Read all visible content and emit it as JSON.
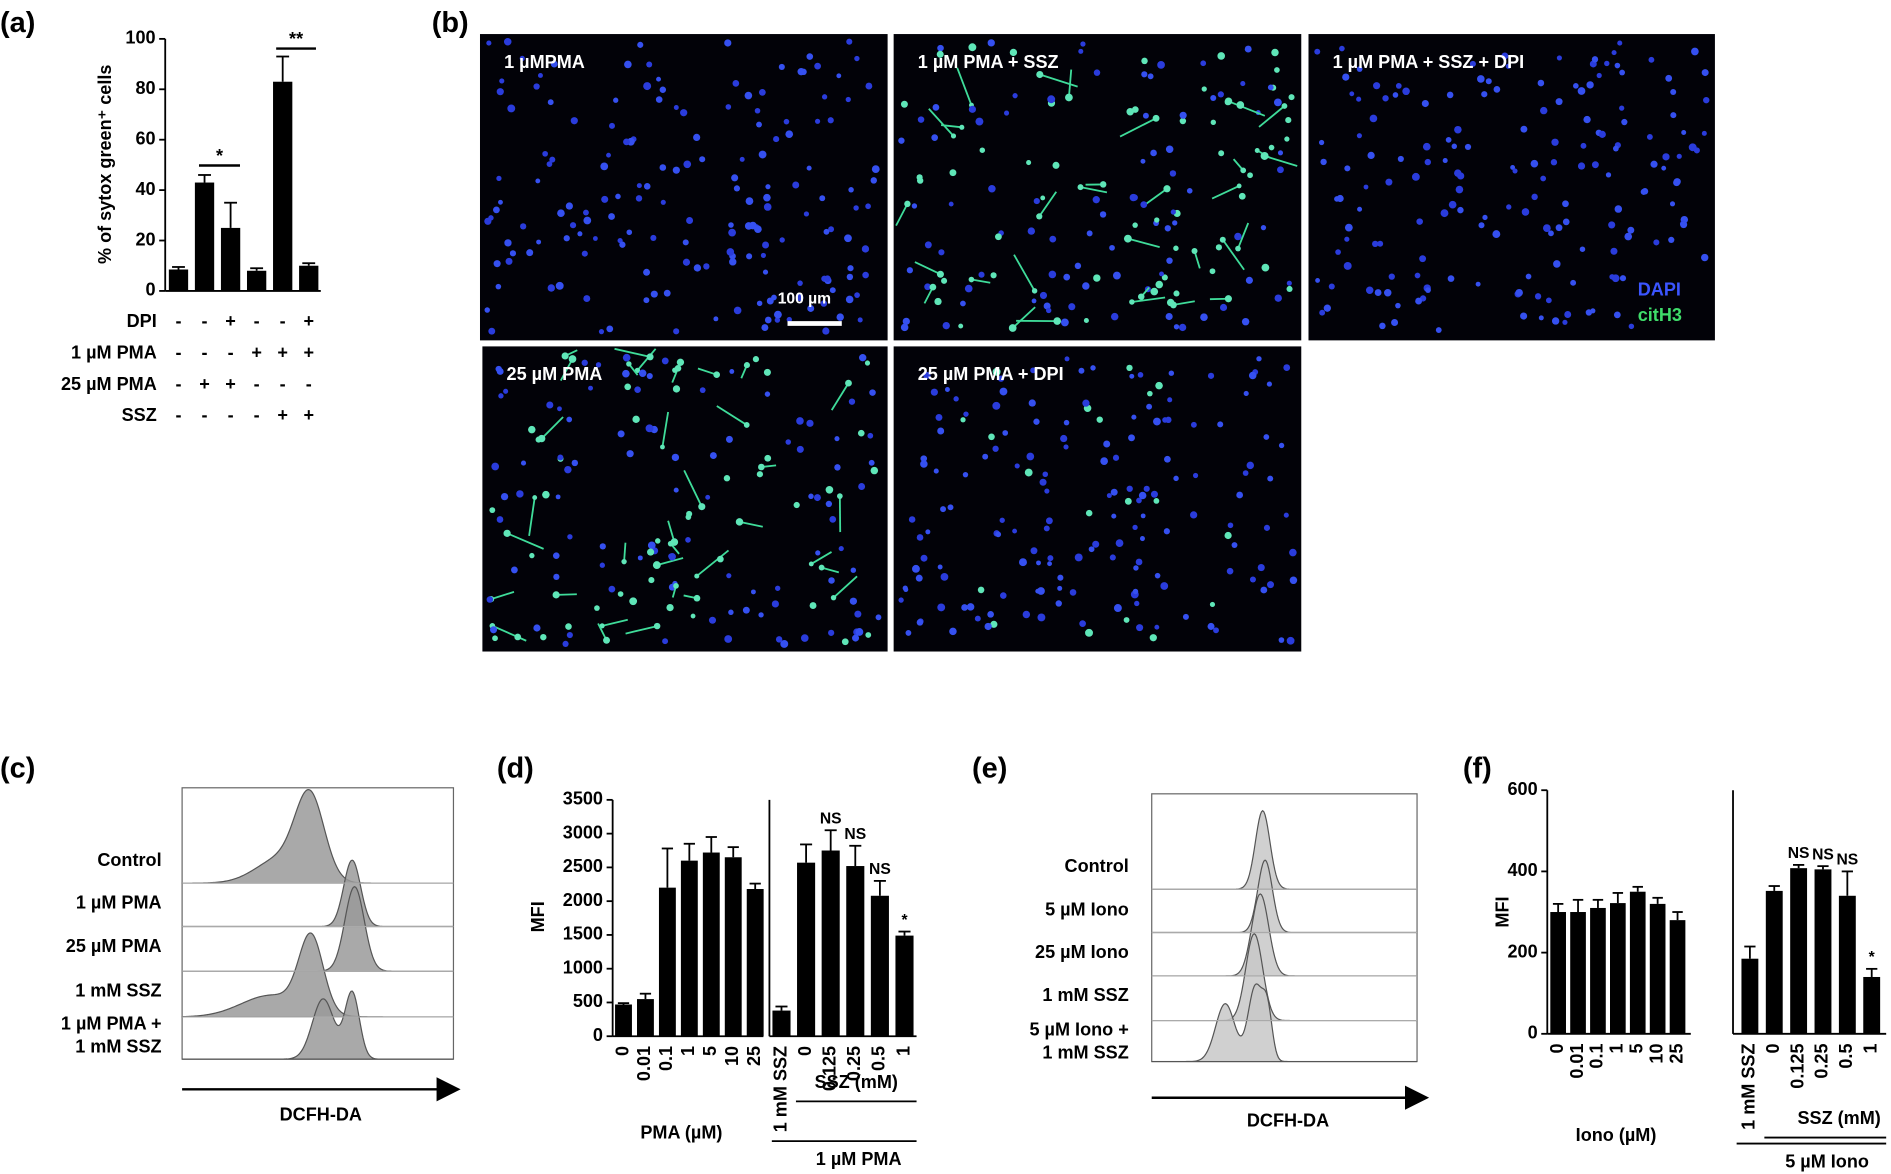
{
  "panel_labels": [
    "(a)",
    "(b)",
    "(c)",
    "(d)",
    "(e)",
    "(f)"
  ],
  "chart_data": [
    {
      "type": "bar",
      "y_label": "% of sytox green⁺ cells",
      "values": [
        8.5,
        43,
        25,
        8,
        83,
        10
      ],
      "errors": [
        1,
        3,
        10,
        1,
        10,
        1
      ],
      "ylim": [
        0,
        100
      ],
      "yticks": [
        0,
        20,
        40,
        60,
        80,
        100
      ],
      "color": "#000000",
      "significance": [
        "*",
        "**"
      ],
      "treatments": [
        {
          "name": "DPI",
          "signs": [
            "-",
            "-",
            "+",
            "-",
            "-",
            "+"
          ]
        },
        {
          "name": "1 µM PMA",
          "signs": [
            "-",
            "-",
            "-",
            "+",
            "+",
            "+"
          ]
        },
        {
          "name": "25 µM PMA",
          "signs": [
            "-",
            "+",
            "+",
            "-",
            "-",
            "-"
          ]
        },
        {
          "name": "SSZ",
          "signs": [
            "-",
            "-",
            "-",
            "-",
            "+",
            "+"
          ]
        }
      ]
    },
    {
      "type": "bar",
      "y_label": "MFI",
      "x_label": "PMA (µM)",
      "categories": [
        "0",
        "0.01",
        "0.1",
        "1",
        "5",
        "10",
        "25"
      ],
      "values": [
        470,
        550,
        2200,
        2600,
        2720,
        2650,
        2180
      ],
      "errors": [
        20,
        80,
        580,
        250,
        230,
        150,
        80
      ],
      "ylim": [
        0,
        3500
      ],
      "yticks": [
        0,
        500,
        1000,
        1500,
        2000,
        2500,
        3000,
        3500
      ],
      "color": "#000000"
    },
    {
      "type": "bar",
      "categories": [
        "1 mM SSZ",
        "0",
        "0.125",
        "0.25",
        "0.5",
        "1"
      ],
      "values": [
        380,
        2570,
        2750,
        2520,
        2080,
        1490
      ],
      "errors": [
        60,
        270,
        300,
        300,
        220,
        60
      ],
      "annotations": [
        null,
        null,
        "NS",
        "NS",
        "NS",
        "*"
      ],
      "group_labels": [
        "SSZ (mM)",
        "1 µM PMA"
      ],
      "ylim": [
        0,
        3500
      ],
      "color": "#000000"
    },
    {
      "type": "bar",
      "y_label": "MFI",
      "x_label": "Iono (µM)",
      "categories": [
        "0",
        "0.01",
        "0.1",
        "1",
        "5",
        "10",
        "25"
      ],
      "values": [
        300,
        300,
        310,
        322,
        350,
        320,
        280
      ],
      "errors": [
        20,
        30,
        20,
        25,
        12,
        15,
        20
      ],
      "ylim": [
        0,
        600
      ],
      "yticks": [
        0,
        200,
        400,
        600
      ],
      "color": "#000000"
    },
    {
      "type": "bar",
      "categories": [
        "1 mM SSZ",
        "0",
        "0.125",
        "0.25",
        "0.5",
        "1"
      ],
      "values": [
        185,
        352,
        408,
        405,
        340,
        140
      ],
      "errors": [
        30,
        12,
        8,
        8,
        60,
        20
      ],
      "annotations": [
        null,
        null,
        "NS",
        "NS",
        "NS",
        "*"
      ],
      "group_labels": [
        "SSZ (mM)",
        "5 µM Iono"
      ],
      "ylim": [
        0,
        600
      ],
      "color": "#000000"
    }
  ],
  "microscopy": {
    "panels": [
      "1 µMPMA",
      "1 µM PMA + SSZ",
      "1 µM PMA + SSZ + DPI",
      "25 µM PMA",
      "25 µM PMA + DPI"
    ],
    "scale_bar": "100 µm",
    "legend": [
      "DAPI",
      "citH3"
    ]
  },
  "histograms": [
    {
      "labels": [
        [
          "Control"
        ],
        [
          "1 µM PMA"
        ],
        [
          "25 µM PMA"
        ],
        [
          "1 mM SSZ"
        ],
        [
          "1 µM PMA +",
          "1 mM SSZ"
        ]
      ],
      "x_label": "DCFH-DA"
    },
    {
      "labels": [
        [
          "Control"
        ],
        [
          "5 µM Iono"
        ],
        [
          "25 µM Iono"
        ],
        [
          "1 mM SSZ"
        ],
        [
          "5 µM Iono +",
          "1 mM SSZ"
        ]
      ],
      "x_label": "DCFH-DA"
    }
  ]
}
